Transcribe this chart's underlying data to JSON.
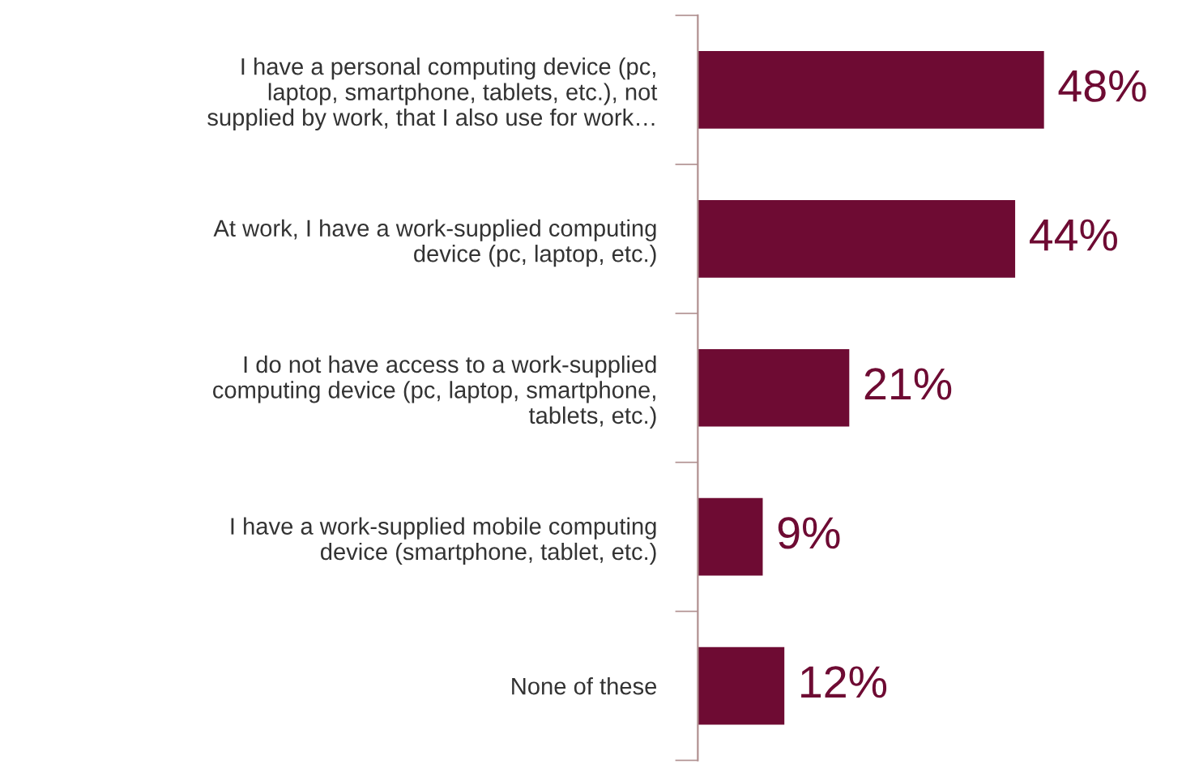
{
  "chart_data": {
    "type": "bar",
    "orientation": "horizontal",
    "categories": [
      "I have a personal computing device (pc,\nlaptop, smartphone, tablets, etc.), not\nsupplied by work, that I also use for work…",
      "At work, I have a work-supplied computing\ndevice (pc, laptop, etc.)",
      "I do not have access to a work-supplied\ncomputing device (pc, laptop, smartphone,\ntablets, etc.)",
      "I have a work-supplied mobile computing\ndevice (smartphone, tablet, etc.)",
      "None of these"
    ],
    "values": [
      48,
      44,
      21,
      9,
      12
    ],
    "value_labels": [
      "48%",
      "44%",
      "21%",
      "9%",
      "12%"
    ],
    "color": "#6e0b33",
    "grid": false,
    "legend": false
  }
}
